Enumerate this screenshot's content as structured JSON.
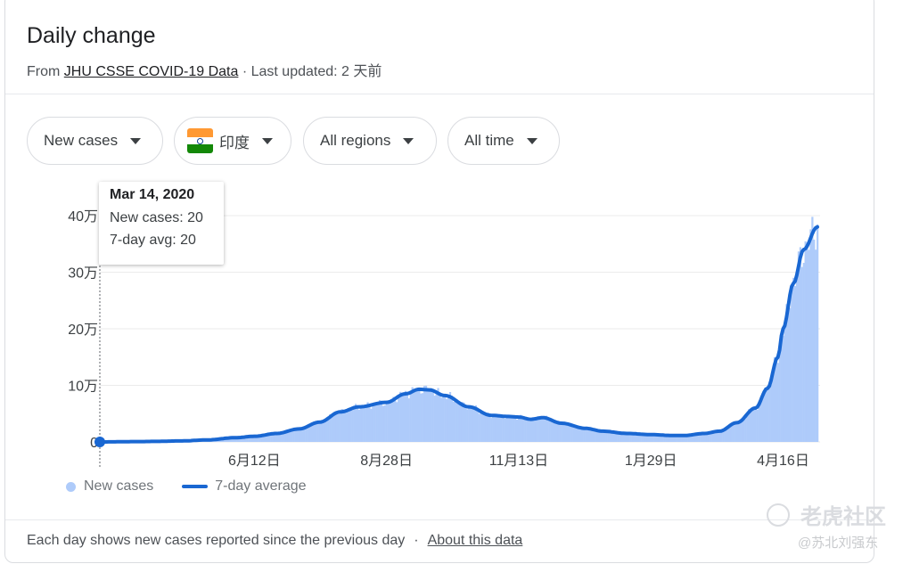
{
  "header": {
    "title": "Daily change",
    "from_label": "From",
    "source_link": "JHU CSSE COVID-19 Data",
    "updated_text": "· Last updated: 2 天前"
  },
  "filters": {
    "metric": "New cases",
    "country": "印度",
    "region": "All regions",
    "period": "All time"
  },
  "tooltip": {
    "date": "Mar 14, 2020",
    "new_cases": "New cases: 20",
    "avg": "7-day avg: 20"
  },
  "legend": {
    "bars_label": "New cases",
    "line_label": "7-day average"
  },
  "footer": {
    "note": "Each day shows new cases reported since the previous day",
    "separator": "·",
    "about_link": "About this data"
  },
  "watermark": {
    "brand": "老虎社区",
    "handle": "@苏北刘强东"
  },
  "colors": {
    "bars": "#aecbfa",
    "line": "#1967d2",
    "grid": "#ebebeb",
    "flag_saffron": "#ff9933",
    "flag_white": "#ffffff",
    "flag_green": "#138808"
  },
  "chart_data": {
    "type": "bar",
    "ylim": [
      0,
      400000
    ],
    "yticks": [
      {
        "value": 0,
        "label": "0"
      },
      {
        "value": 100000,
        "label": "10万"
      },
      {
        "value": 200000,
        "label": "20万"
      },
      {
        "value": 300000,
        "label": "30万"
      },
      {
        "value": 400000,
        "label": "40万"
      }
    ],
    "xlim": [
      "2020-03-14",
      "2021-05-06"
    ],
    "xticks": [
      {
        "date": "2020-06-12",
        "label": "6月12日"
      },
      {
        "date": "2020-08-28",
        "label": "8月28日"
      },
      {
        "date": "2020-11-13",
        "label": "11月13日"
      },
      {
        "date": "2021-01-29",
        "label": "1月29日"
      },
      {
        "date": "2021-04-16",
        "label": "4月16日"
      }
    ],
    "avg_keypoints": [
      [
        "2020-03-14",
        20
      ],
      [
        "2020-04-05",
        600
      ],
      [
        "2020-04-15",
        900
      ],
      [
        "2020-05-01",
        1800
      ],
      [
        "2020-05-15",
        3500
      ],
      [
        "2020-06-01",
        7500
      ],
      [
        "2020-06-12",
        10000
      ],
      [
        "2020-06-25",
        15000
      ],
      [
        "2020-07-08",
        23000
      ],
      [
        "2020-07-20",
        35000
      ],
      [
        "2020-08-01",
        53000
      ],
      [
        "2020-08-12",
        62000
      ],
      [
        "2020-08-28",
        70000
      ],
      [
        "2020-09-08",
        85000
      ],
      [
        "2020-09-16",
        93000
      ],
      [
        "2020-09-22",
        92000
      ],
      [
        "2020-10-01",
        82000
      ],
      [
        "2020-10-15",
        62000
      ],
      [
        "2020-10-28",
        47000
      ],
      [
        "2020-11-07",
        45000
      ],
      [
        "2020-11-13",
        44000
      ],
      [
        "2020-11-20",
        40000
      ],
      [
        "2020-11-27",
        43000
      ],
      [
        "2020-12-08",
        33000
      ],
      [
        "2020-12-22",
        24000
      ],
      [
        "2021-01-01",
        19000
      ],
      [
        "2021-01-15",
        15000
      ],
      [
        "2021-01-29",
        13000
      ],
      [
        "2021-02-10",
        11500
      ],
      [
        "2021-02-18",
        11500
      ],
      [
        "2021-03-01",
        15000
      ],
      [
        "2021-03-10",
        19000
      ],
      [
        "2021-03-20",
        34000
      ],
      [
        "2021-03-31",
        60000
      ],
      [
        "2021-04-07",
        95000
      ],
      [
        "2021-04-13",
        150000
      ],
      [
        "2021-04-16",
        200000
      ],
      [
        "2021-04-22",
        280000
      ],
      [
        "2021-04-28",
        340000
      ],
      [
        "2021-05-06",
        380000
      ]
    ],
    "series": [
      {
        "name": "New cases",
        "kind": "bar"
      },
      {
        "name": "7-day average",
        "kind": "line"
      }
    ]
  }
}
